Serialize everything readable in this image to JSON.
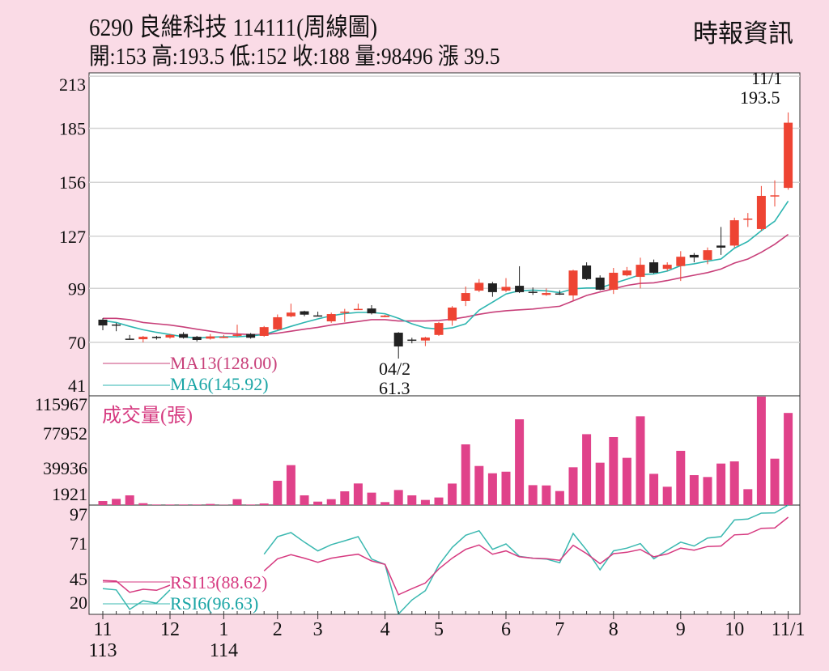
{
  "header": {
    "title": "6290  良維科技 114111(周線圖)",
    "summary": "開:153 高:193.5 低:152 收:188 量:98496 漲 39.5",
    "source": "時報資訊"
  },
  "colors": {
    "background": "#fadbe6",
    "up": "#ee4433",
    "down": "#222222",
    "ma13": "#c8407a",
    "ma6": "#2cb5b0",
    "volume": "#e0428a",
    "rsi13": "#d63a80",
    "rsi6": "#3ab8b0"
  },
  "chart_data": [
    {
      "type": "candlestick",
      "period": "weekly",
      "yticks": [
        213,
        185,
        156,
        127,
        99,
        70,
        41
      ],
      "ylim": [
        41,
        213
      ],
      "grid": true,
      "legend": [
        {
          "key": "ma13",
          "label": "MA13(128.00)"
        },
        {
          "key": "ma6",
          "label": "MA6(145.92)"
        }
      ],
      "annotations": [
        {
          "date": "11/1",
          "value": "193.5"
        },
        {
          "date": "04/2",
          "value": "61.3"
        }
      ],
      "ohlc": [
        [
          82.2,
          83,
          76.5,
          79.1
        ],
        [
          79.6,
          80.5,
          76,
          79.2
        ],
        [
          72,
          74,
          71.5,
          71.8
        ],
        [
          71.7,
          73.5,
          70,
          73
        ],
        [
          73,
          73.5,
          71.5,
          72.3
        ],
        [
          72.6,
          74.5,
          72,
          74
        ],
        [
          74.5,
          75.5,
          72,
          72.5
        ],
        [
          73,
          73.5,
          70.5,
          71.3
        ],
        [
          72,
          74.5,
          71.5,
          73.2
        ],
        [
          72.6,
          74,
          72.3,
          73
        ],
        [
          73.5,
          79.5,
          73,
          74.2
        ],
        [
          74.5,
          75,
          72,
          72.5
        ],
        [
          73.5,
          78.8,
          73,
          78.2
        ],
        [
          77,
          85,
          76.5,
          83.5
        ],
        [
          84,
          90.8,
          83.5,
          86
        ],
        [
          86.7,
          87,
          84,
          84.9
        ],
        [
          84.5,
          86.5,
          84,
          84.2
        ],
        [
          81.3,
          86,
          80.5,
          85.2
        ],
        [
          86,
          88,
          81,
          86.5
        ],
        [
          87.6,
          90.8,
          87.5,
          88
        ],
        [
          88.2,
          90,
          85,
          85.6
        ],
        [
          83.6,
          84.8,
          83.5,
          84.4
        ],
        [
          75.2,
          75.5,
          61.3,
          67.8
        ],
        [
          71.5,
          72.5,
          69.5,
          71.3
        ],
        [
          71,
          73,
          68,
          72.6
        ],
        [
          74,
          81,
          73.5,
          80.4
        ],
        [
          81.7,
          89.5,
          79,
          88.7
        ],
        [
          92.2,
          100,
          89.5,
          96.5
        ],
        [
          97.8,
          104,
          97,
          102
        ],
        [
          101.7,
          102.5,
          94.5,
          97
        ],
        [
          97.8,
          104.5,
          97,
          99.8
        ],
        [
          100.4,
          110.9,
          96.5,
          97
        ],
        [
          97.2,
          99.5,
          95.5,
          96.8
        ],
        [
          95.5,
          99,
          95,
          96.5
        ],
        [
          96.3,
          98,
          95.5,
          95.7
        ],
        [
          95.2,
          109,
          92.5,
          108.6
        ],
        [
          111.3,
          113,
          103.5,
          104
        ],
        [
          104.8,
          106,
          98,
          98.3
        ],
        [
          98.3,
          110,
          96,
          107.4
        ],
        [
          106,
          110.5,
          105.5,
          108.6
        ],
        [
          105.2,
          115.5,
          99,
          111.7
        ],
        [
          113,
          114.5,
          107,
          107.4
        ],
        [
          109.5,
          113,
          108.5,
          111.7
        ],
        [
          111,
          119,
          103,
          116
        ],
        [
          117,
          118,
          113,
          115.6
        ],
        [
          114.3,
          121,
          112,
          119.5
        ],
        [
          122,
          132,
          117,
          120.9
        ],
        [
          122,
          137,
          121,
          135.6
        ],
        [
          136.5,
          139.5,
          132,
          136.5
        ],
        [
          130.9,
          154,
          130,
          148.7
        ],
        [
          148.7,
          157,
          143,
          149
        ],
        [
          153,
          193.5,
          152,
          188
        ]
      ],
      "ma13": [
        82.9,
        82.9,
        82.2,
        80.7,
        80,
        79.3,
        78.3,
        77.1,
        76,
        74.9,
        74.5,
        74.2,
        74.2,
        74.9,
        76,
        77.1,
        78.1,
        79.3,
        80.3,
        81.2,
        82.2,
        82.2,
        81.5,
        81.5,
        81.5,
        81.8,
        82.5,
        83.6,
        85.1,
        86.2,
        87,
        87.5,
        87.9,
        88.7,
        89.4,
        92.3,
        95.2,
        97.1,
        98.8,
        100.6,
        101.7,
        102,
        103.2,
        104.7,
        106.1,
        107.5,
        109.4,
        112.6,
        114.8,
        118.4,
        122.7,
        128
      ],
      "ma6": [
        81.7,
        80.7,
        78.6,
        76.8,
        75.4,
        74.2,
        73,
        72.3,
        72.8,
        73,
        73,
        73.5,
        74.2,
        76.4,
        78.6,
        80.7,
        82.6,
        84.3,
        85.5,
        86.1,
        86.1,
        85.4,
        82.9,
        80,
        77.8,
        77.1,
        77.8,
        80,
        87.3,
        91.6,
        96,
        97.7,
        98.1,
        97.7,
        96.7,
        98.8,
        99.2,
        99.2,
        101.7,
        103.9,
        106.4,
        106.8,
        108.3,
        111.2,
        112.2,
        113.6,
        114.8,
        120.6,
        124.2,
        130,
        135.1,
        145.92
      ]
    },
    {
      "type": "bar",
      "label": "成交量(張)",
      "yticks": [
        115967,
        77952,
        39936,
        1921
      ],
      "ylim": [
        0,
        115967
      ],
      "values": [
        4300,
        6600,
        10400,
        2000,
        600,
        600,
        600,
        600,
        1200,
        300,
        6300,
        600,
        1700,
        26000,
        42700,
        10400,
        3700,
        6300,
        14700,
        23100,
        13300,
        3200,
        16100,
        10400,
        5500,
        8100,
        23000,
        64900,
        41800,
        34000,
        35700,
        91700,
        21300,
        21000,
        15000,
        40400,
        75800,
        45300,
        72700,
        50500,
        94900,
        33400,
        19600,
        58000,
        32000,
        30000,
        44400,
        46700,
        17000,
        115967,
        49600,
        98496
      ]
    },
    {
      "type": "line",
      "yticks": [
        97,
        71,
        45,
        20
      ],
      "legend": [
        {
          "key": "rsi13",
          "label": "RSI13(88.62)"
        },
        {
          "key": "rsi6",
          "label": "RSI6(96.63)"
        }
      ],
      "rsi13": [
        46.8,
        46.5,
        39.1,
        41.1,
        40.4,
        43.8,
        null,
        null,
        null,
        null,
        null,
        null,
        53.2,
        61.2,
        63.9,
        61.6,
        58.9,
        61.6,
        63,
        64.2,
        59.8,
        57.5,
        37.5,
        41.5,
        45.2,
        54.5,
        61.6,
        67.4,
        70.3,
        64.2,
        66.4,
        62.5,
        61.6,
        61.3,
        60.2,
        70.1,
        64.6,
        58,
        64.6,
        65.5,
        67.3,
        62.5,
        64.4,
        68.2,
        66.9,
        69.3,
        69.6,
        77,
        77.4,
        81.3,
        81.6,
        88.62
      ],
      "rsi6": [
        41.5,
        40.7,
        27.8,
        33.5,
        31.9,
        40.7,
        null,
        null,
        null,
        null,
        null,
        null,
        64.2,
        75.8,
        78.5,
        72.2,
        66.4,
        70.5,
        73.1,
        75.8,
        61,
        57.5,
        24.7,
        34,
        40.2,
        57.1,
        68.7,
        76.7,
        79.7,
        67.4,
        71,
        62.8,
        61.6,
        61,
        58.6,
        77.9,
        66.9,
        53.9,
        66.4,
        68.2,
        71.2,
        61.2,
        66.9,
        72.2,
        69.6,
        74.9,
        75.8,
        86.8,
        87.4,
        91.3,
        91.5,
        96.63
      ]
    }
  ],
  "xaxis": {
    "ticks": [
      {
        "label": "11",
        "sub": "113",
        "i": 0
      },
      {
        "label": "12",
        "i": 5
      },
      {
        "label": "1",
        "sub": "114",
        "i": 9
      },
      {
        "label": "2",
        "i": 13
      },
      {
        "label": "3",
        "i": 16
      },
      {
        "label": "4",
        "i": 21
      },
      {
        "label": "5",
        "i": 25
      },
      {
        "label": "6",
        "i": 30
      },
      {
        "label": "7",
        "i": 34
      },
      {
        "label": "8",
        "i": 38
      },
      {
        "label": "9",
        "i": 43
      },
      {
        "label": "10",
        "i": 47
      },
      {
        "label": "11/1",
        "i": 51
      }
    ]
  }
}
